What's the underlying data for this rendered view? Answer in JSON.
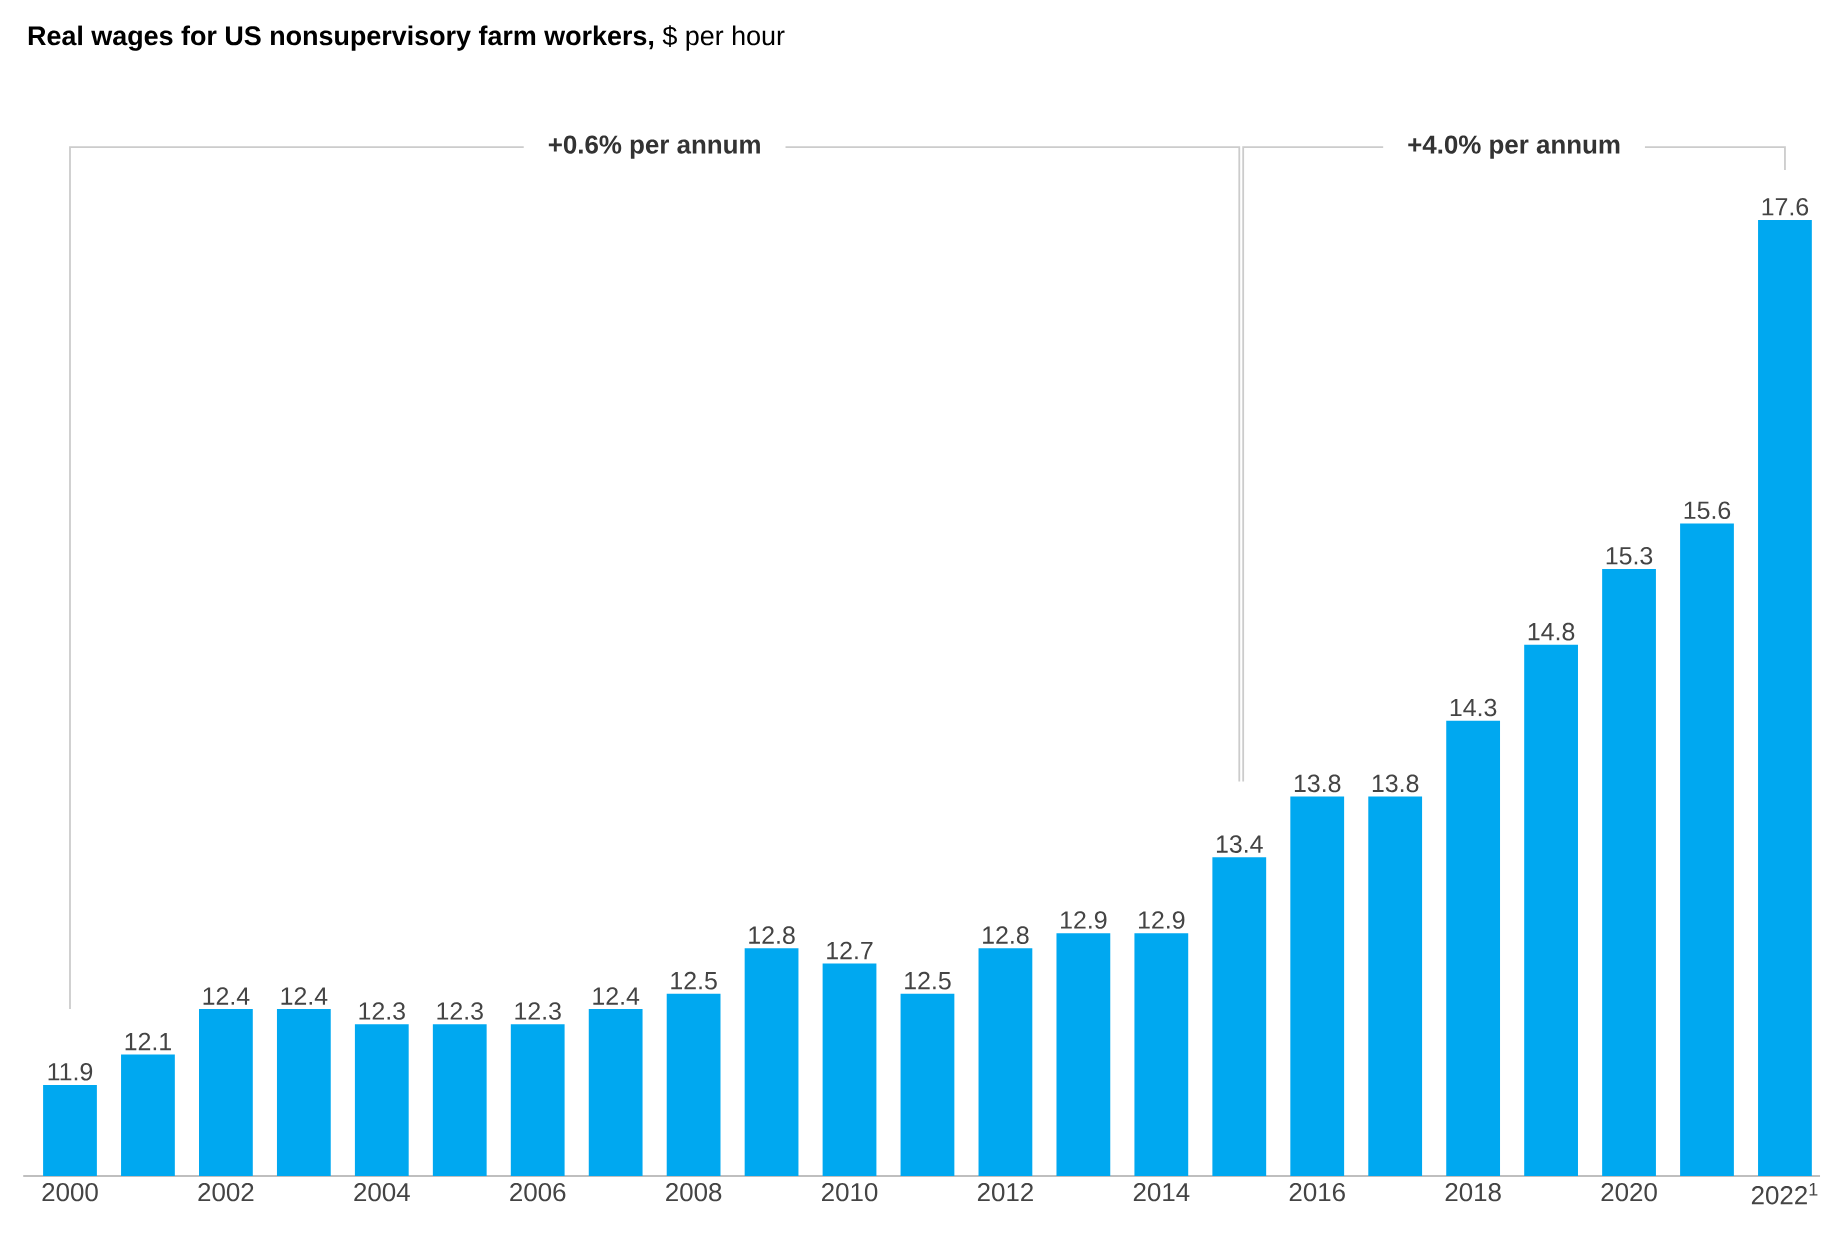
{
  "chart_data": {
    "type": "bar",
    "title": "**Real wages for US nonsupervisory farm workers,** $ per hour",
    "categories": [
      "2000",
      null,
      "2002",
      null,
      "2004",
      null,
      "2006",
      null,
      "2008",
      null,
      "2010",
      null,
      "2012",
      null,
      "2014",
      null,
      "2016",
      null,
      "2018",
      null,
      "2020",
      null,
      "2022$^{1}$"
    ],
    "values": [
      11.9,
      12.1,
      12.4,
      12.4,
      12.3,
      12.3,
      12.3,
      12.4,
      12.5,
      12.8,
      12.7,
      12.5,
      12.8,
      12.9,
      12.9,
      13.4,
      13.8,
      13.8,
      14.3,
      14.8,
      15.3,
      15.6,
      17.6
    ],
    "color": "#00a8f0",
    "ylim": [
      11.3,
      17.6
    ],
    "data_labels": true,
    "annotations": [
      "+0.6% per annum",
      "+4.0% per annum"
    ]
  }
}
